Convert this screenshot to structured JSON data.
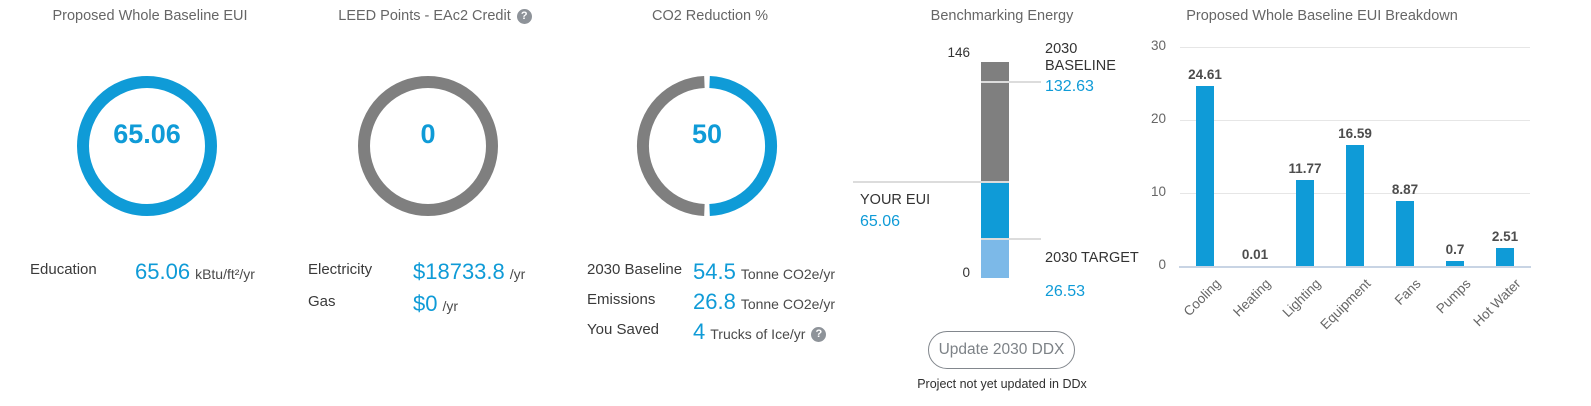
{
  "icons": {
    "help_glyph": "?"
  },
  "colors": {
    "accent": "#0f9bd7",
    "gauge_gray": "#7f7f7f",
    "light_blue": "#7cb9e8"
  },
  "panels": {
    "eui": {
      "title": "Proposed Whole Baseline EUI",
      "gauge_value": "65.06",
      "rows": [
        {
          "label": "Education",
          "value": "65.06",
          "unit": "kBtu/ft²/yr"
        }
      ]
    },
    "leed": {
      "title": "LEED Points - EAc2 Credit",
      "gauge_value": "0",
      "rows": [
        {
          "label": "Electricity",
          "value": "$18733.8",
          "unit": "/yr"
        },
        {
          "label": "Gas",
          "value": "$0",
          "unit": "/yr"
        }
      ]
    },
    "co2": {
      "title": "CO2 Reduction %",
      "gauge_value": "50",
      "rows": [
        {
          "label": "2030 Baseline",
          "value": "54.5",
          "unit": "Tonne CO2e/yr"
        },
        {
          "label": "Emissions",
          "value": "26.8",
          "unit": "Tonne CO2e/yr"
        },
        {
          "label": "You Saved",
          "value": "4",
          "unit": "Trucks of Ice/yr"
        }
      ]
    },
    "benchmark": {
      "title": "Benchmarking Energy",
      "button_label": "Update 2030 DDX",
      "note": "Project not yet updated in DDx"
    },
    "breakdown": {
      "title": "Proposed Whole Baseline EUI Breakdown"
    }
  },
  "chart_data": [
    {
      "type": "bar",
      "name": "benchmarking-energy",
      "title": "Benchmarking Energy",
      "stacked": true,
      "axis": {
        "min": 0,
        "max": 146,
        "max_label": "146",
        "min_label": "0"
      },
      "markers": [
        {
          "label": "2030 BASELINE",
          "value": 132.63,
          "value_label": "132.63"
        },
        {
          "label": "YOUR EUI",
          "value": 65.06,
          "value_label": "65.06"
        },
        {
          "label": "2030 TARGET",
          "value": 26.53,
          "value_label": "26.53"
        }
      ],
      "segments": [
        {
          "name": "baseline-to-your-eui",
          "from": 65.06,
          "to": 146,
          "color": "#7f7f7f"
        },
        {
          "name": "your-eui-to-target",
          "from": 26.53,
          "to": 65.06,
          "color": "#0f9bd7"
        },
        {
          "name": "target-to-zero",
          "from": 0,
          "to": 26.53,
          "color": "#7cb9e8"
        }
      ]
    },
    {
      "type": "bar",
      "name": "eui-breakdown",
      "title": "Proposed Whole Baseline EUI Breakdown",
      "categories": [
        "Cooling",
        "Heating",
        "Lighting",
        "Equipment",
        "Fans",
        "Pumps",
        "Hot Water"
      ],
      "values": [
        24.61,
        0.01,
        11.77,
        16.59,
        8.87,
        0.7,
        2.51
      ],
      "value_labels": [
        "24.61",
        "0.01",
        "11.77",
        "16.59",
        "8.87",
        "0.7",
        "2.51"
      ],
      "xlabel": "",
      "ylabel": "",
      "ylim": [
        0,
        30
      ],
      "yticks": [
        0,
        10,
        20,
        30
      ],
      "grid": true,
      "legend": false,
      "bar_color": "#0f9bd7"
    }
  ]
}
